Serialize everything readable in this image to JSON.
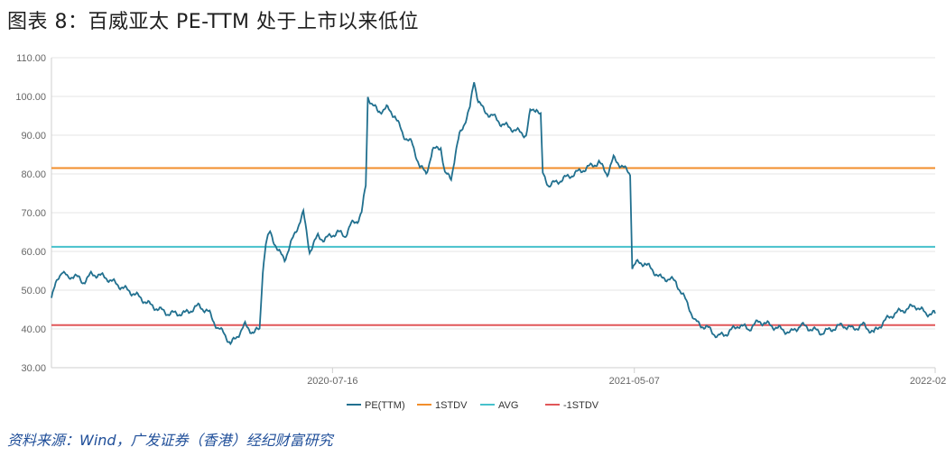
{
  "title": "图表 8：百威亚太 PE-TTM 处于上市以来低位",
  "source": "资料来源：Wind，广发证券（香港）经纪财富研究",
  "colors": {
    "pe": "#21708f",
    "stdv1": "#f28e2b",
    "avg": "#47c1cc",
    "neg_stdv1": "#e15759",
    "grid": "#e6e6e6",
    "axis": "#cfcfcf"
  },
  "chart_data": {
    "type": "line",
    "ylim": [
      30,
      110
    ],
    "yticks": [
      "30.00",
      "40.00",
      "50.00",
      "60.00",
      "70.00",
      "80.00",
      "90.00",
      "100.00",
      "110.00"
    ],
    "x_ticks": [
      {
        "label": "2020-07-16",
        "index": 270
      },
      {
        "label": "2021-05-07",
        "index": 560
      },
      {
        "label": "2022-02-28",
        "index": 849
      }
    ],
    "x_count": 850,
    "reference_lines": [
      {
        "name": "1STDV",
        "value": 81.5
      },
      {
        "name": "AVG",
        "value": 61.2
      },
      {
        "name": "-1STDV",
        "value": 41.0
      }
    ],
    "series": [
      {
        "name": "PE(TTM)",
        "anchors": [
          [
            0,
            48
          ],
          [
            6,
            53
          ],
          [
            10,
            55
          ],
          [
            16,
            53
          ],
          [
            22,
            54
          ],
          [
            30,
            52
          ],
          [
            38,
            54
          ],
          [
            45,
            54
          ],
          [
            54,
            53
          ],
          [
            66,
            51
          ],
          [
            80,
            49
          ],
          [
            96,
            46
          ],
          [
            112,
            44
          ],
          [
            128,
            44
          ],
          [
            142,
            46
          ],
          [
            152,
            44
          ],
          [
            160,
            40
          ],
          [
            166,
            39
          ],
          [
            172,
            36
          ],
          [
            178,
            38
          ],
          [
            186,
            41
          ],
          [
            194,
            39
          ],
          [
            200,
            40
          ],
          [
            203,
            55
          ],
          [
            206,
            62
          ],
          [
            210,
            65
          ],
          [
            218,
            60
          ],
          [
            224,
            58
          ],
          [
            230,
            62
          ],
          [
            236,
            66
          ],
          [
            242,
            70
          ],
          [
            248,
            60
          ],
          [
            256,
            64
          ],
          [
            262,
            63
          ],
          [
            268,
            64
          ],
          [
            275,
            65
          ],
          [
            282,
            64
          ],
          [
            288,
            67
          ],
          [
            294,
            68
          ],
          [
            298,
            70
          ],
          [
            302,
            77
          ],
          [
            304,
            100
          ],
          [
            308,
            98
          ],
          [
            314,
            96
          ],
          [
            322,
            97
          ],
          [
            330,
            95
          ],
          [
            338,
            90
          ],
          [
            346,
            88
          ],
          [
            354,
            82
          ],
          [
            360,
            80
          ],
          [
            366,
            86
          ],
          [
            374,
            87
          ],
          [
            378,
            80
          ],
          [
            384,
            79
          ],
          [
            388,
            85
          ],
          [
            392,
            90
          ],
          [
            398,
            94
          ],
          [
            402,
            97
          ],
          [
            406,
            104
          ],
          [
            410,
            99
          ],
          [
            416,
            96
          ],
          [
            424,
            95
          ],
          [
            432,
            93
          ],
          [
            440,
            92
          ],
          [
            448,
            91
          ],
          [
            456,
            90
          ],
          [
            460,
            96
          ],
          [
            466,
            97
          ],
          [
            470,
            95
          ],
          [
            472,
            80
          ],
          [
            478,
            77
          ],
          [
            486,
            78
          ],
          [
            494,
            79
          ],
          [
            502,
            80
          ],
          [
            510,
            81
          ],
          [
            518,
            82
          ],
          [
            526,
            83
          ],
          [
            534,
            80
          ],
          [
            540,
            84
          ],
          [
            548,
            82
          ],
          [
            556,
            80
          ],
          [
            558,
            56
          ],
          [
            562,
            57
          ],
          [
            570,
            57
          ],
          [
            578,
            55
          ],
          [
            586,
            53
          ],
          [
            594,
            53
          ],
          [
            600,
            52
          ],
          [
            606,
            49
          ],
          [
            612,
            46
          ],
          [
            618,
            42
          ],
          [
            624,
            41
          ],
          [
            632,
            40
          ],
          [
            640,
            38
          ],
          [
            650,
            39
          ],
          [
            660,
            41
          ],
          [
            670,
            40
          ],
          [
            680,
            42
          ],
          [
            690,
            41
          ],
          [
            700,
            40
          ],
          [
            710,
            39
          ],
          [
            720,
            41
          ],
          [
            730,
            40
          ],
          [
            740,
            39
          ],
          [
            750,
            40
          ],
          [
            760,
            41
          ],
          [
            770,
            40
          ],
          [
            780,
            41
          ],
          [
            790,
            39
          ],
          [
            800,
            42
          ],
          [
            810,
            44
          ],
          [
            820,
            45
          ],
          [
            830,
            46
          ],
          [
            840,
            44
          ],
          [
            849,
            44
          ]
        ]
      }
    ]
  }
}
